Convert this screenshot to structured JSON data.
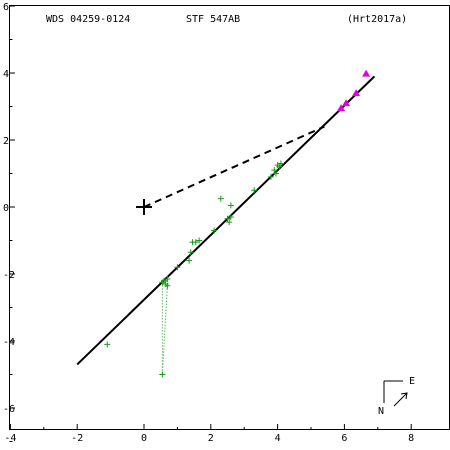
{
  "header": {
    "wds_id": "WDS 04259-0124",
    "discoverer": "STF 547AB",
    "reference": "(Hrt2017a)"
  },
  "chart_data": {
    "type": "scatter",
    "xlim": [
      -4,
      9
    ],
    "ylim": [
      -6.9,
      6
    ],
    "x_ticks": [
      -4,
      -2,
      0,
      2,
      4,
      6,
      8
    ],
    "y_ticks": [
      -6,
      -4,
      -2,
      0,
      2,
      4,
      6
    ],
    "grid": false,
    "primary_star": [
      0,
      0
    ],
    "orbit_line": [
      [
        -2.0,
        -4.7
      ],
      [
        6.9,
        3.9
      ]
    ],
    "dashed_line": [
      [
        0,
        0
      ],
      [
        5.4,
        2.4
      ]
    ],
    "series": [
      {
        "marker": "plus",
        "color": "#1a9a1a",
        "points": [
          [
            -1.1,
            -4.1
          ],
          [
            0.55,
            -2.25
          ],
          [
            0.6,
            -2.2
          ],
          [
            0.65,
            -2.3
          ],
          [
            0.7,
            -2.15
          ],
          [
            0.7,
            -2.35
          ],
          [
            1.0,
            -1.8
          ],
          [
            1.35,
            -1.6
          ],
          [
            1.4,
            -1.35
          ],
          [
            1.45,
            -1.05
          ],
          [
            1.55,
            -1.05
          ],
          [
            1.65,
            -1.0
          ],
          [
            2.1,
            -0.7
          ],
          [
            2.3,
            0.25
          ],
          [
            2.5,
            -0.35
          ],
          [
            2.55,
            -0.45
          ],
          [
            2.6,
            -0.3
          ],
          [
            2.6,
            0.05
          ],
          [
            3.3,
            0.5
          ],
          [
            3.8,
            0.9
          ],
          [
            3.9,
            1.1
          ],
          [
            3.95,
            1.0
          ],
          [
            4.0,
            1.25
          ],
          [
            4.05,
            1.2
          ],
          [
            4.1,
            1.3
          ]
        ]
      },
      {
        "marker": "triangle",
        "color": "#e000e0",
        "points": [
          [
            5.9,
            2.95
          ],
          [
            6.05,
            3.1
          ],
          [
            6.35,
            3.4
          ],
          [
            6.65,
            3.98
          ]
        ]
      }
    ],
    "residual_lines": [
      {
        "from": [
          0.55,
          -2.25
        ],
        "to": [
          0.55,
          -5.0
        ]
      },
      {
        "from": [
          0.7,
          -2.35
        ],
        "to": [
          0.55,
          -5.0
        ]
      }
    ],
    "residual_point": [
      0.55,
      -5.0
    ],
    "orientation": {
      "north": "N",
      "east": "E"
    }
  }
}
